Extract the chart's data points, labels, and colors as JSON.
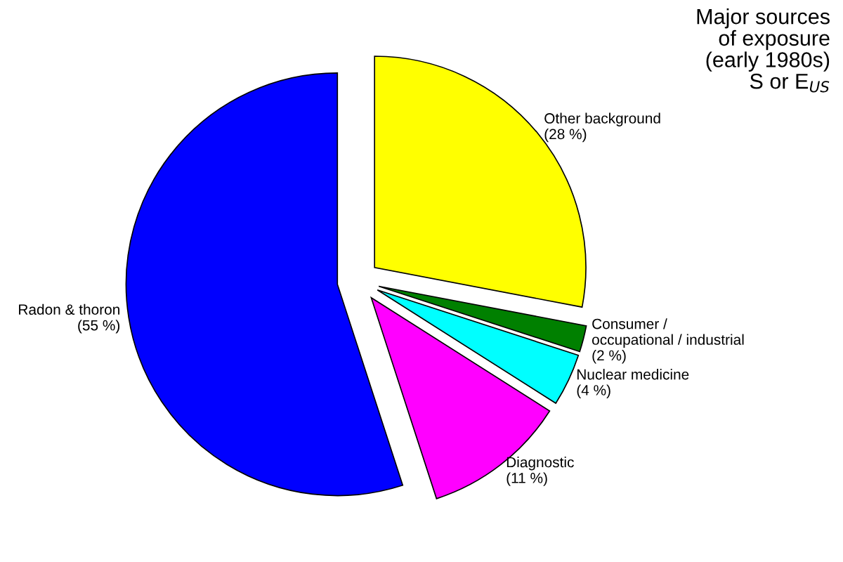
{
  "chart_data": {
    "type": "pie",
    "title": "Major sources\nof exposure\n(early 1980s)\nS or E$_{US}$",
    "categories": [
      "Other background",
      "Consumer /\noccupational / industrial",
      "Nuclear medicine",
      "Diagnostic",
      "Radon & thoron"
    ],
    "values": [
      28,
      2,
      4,
      11,
      55
    ],
    "value_labels": [
      "(28 %)",
      "(2 %)",
      "(4 %)",
      "(11 %)",
      "(55 %)"
    ],
    "colors": [
      "#ffff00",
      "#008000",
      "#00ffff",
      "#ff00ff",
      "#0000ff"
    ],
    "legend": false
  }
}
